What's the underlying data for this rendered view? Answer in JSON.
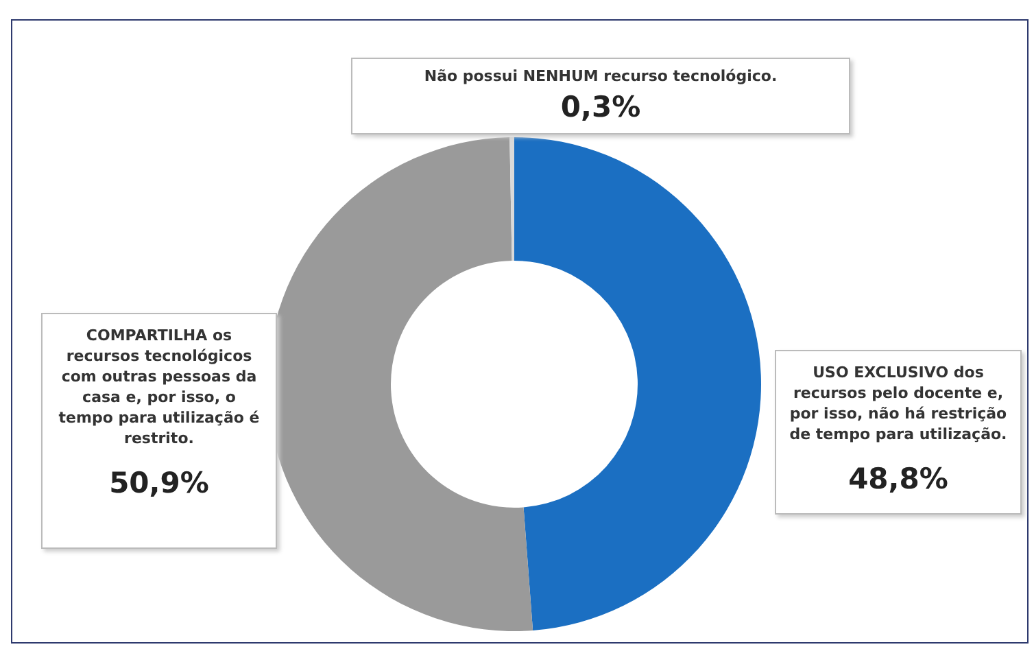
{
  "chart_data": {
    "type": "donut",
    "categories": [
      "USO EXCLUSIVO dos recursos pelo docente e, por isso, não há restrição de tempo para utilização.",
      "COMPARTILHA os recursos tecnológicos com outras pessoas da casa e, por isso, o tempo para utilização é restrito.",
      "Não possui NENHUM recurso tecnológico."
    ],
    "values": [
      48.8,
      50.9,
      0.3
    ],
    "colors": [
      "#1b6fc2",
      "#9a9a9a",
      "#d9d9d9"
    ],
    "value_labels": [
      "48,8%",
      "50,9%",
      "0,3%"
    ],
    "legend": false
  }
}
